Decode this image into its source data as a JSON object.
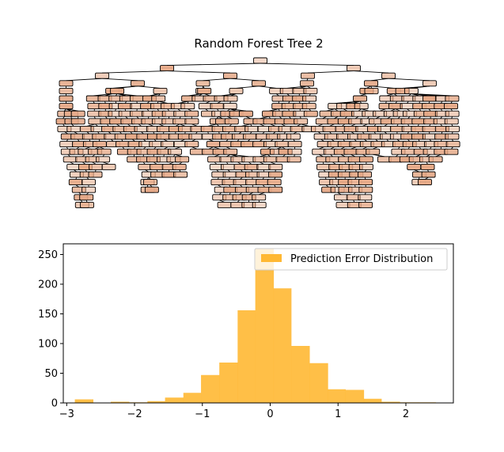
{
  "chart_data": [
    {
      "type": "tree",
      "title": "Random Forest Tree 2",
      "node_color": "#e6a987",
      "edge_color": "#000000"
    },
    {
      "type": "bar",
      "subtype": "histogram",
      "legend": "Prediction Error Distribution",
      "legend_position": "top-right",
      "color": "#ffb833",
      "xlim": [
        -3.05,
        2.7
      ],
      "ylim": [
        0,
        268
      ],
      "xticks": [
        -3,
        -2,
        -1,
        0,
        1,
        2
      ],
      "yticks": [
        0,
        50,
        100,
        150,
        200,
        250
      ],
      "bin_edges": [
        -2.88,
        -2.61,
        -2.35,
        -2.08,
        -1.81,
        -1.55,
        -1.28,
        -1.02,
        -0.75,
        -0.48,
        -0.22,
        0.05,
        0.31,
        0.58,
        0.85,
        1.11,
        1.38,
        1.64,
        1.91,
        2.18,
        2.44
      ],
      "values": [
        6,
        0,
        2,
        1,
        3,
        9,
        17,
        47,
        68,
        156,
        260,
        193,
        96,
        67,
        23,
        22,
        7,
        2,
        1,
        1
      ],
      "grid": false
    }
  ]
}
